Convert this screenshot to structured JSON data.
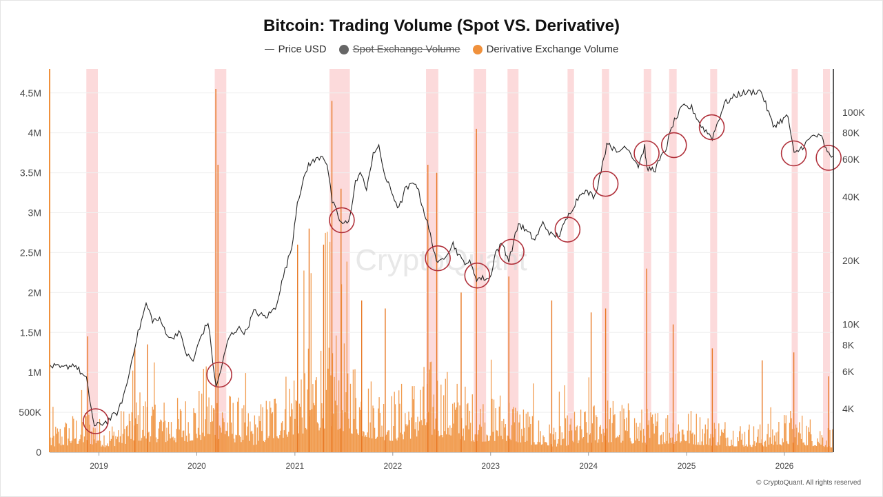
{
  "header": {
    "title": "Bitcoin: Trading Volume (Spot VS. Derivative)"
  },
  "legend": {
    "items": [
      {
        "label": "Price USD",
        "swatch": "line",
        "color": "#333333"
      },
      {
        "label": "Spot Exchange Volume",
        "swatch": "dot",
        "color": "#666666",
        "hidden": true
      },
      {
        "label": "Derivative Exchange Volume",
        "swatch": "dot",
        "color": "#f0913c"
      }
    ]
  },
  "watermark": "CryptoQuant",
  "footer": {
    "copyright": "© CryptoQuant. All rights reserved"
  },
  "chart_data": {
    "type": "bar",
    "x_range": [
      "2018-07-01",
      "2026-06-30"
    ],
    "x_ticks": [
      "2019",
      "2020",
      "2021",
      "2022",
      "2023",
      "2024",
      "2025",
      "2026"
    ],
    "y_left": {
      "range": [
        0,
        4800000
      ],
      "ticks": [
        0,
        500000,
        1000000,
        1500000,
        2000000,
        2500000,
        3000000,
        3500000,
        4000000,
        4500000
      ],
      "tick_labels": [
        "0",
        "500K",
        "1M",
        "1.5M",
        "2M",
        "2.5M",
        "3M",
        "3.5M",
        "4M",
        "4.5M"
      ]
    },
    "y_right": {
      "scale": "log",
      "range": [
        2500,
        160000
      ],
      "ticks": [
        4000,
        6000,
        8000,
        10000,
        20000,
        40000,
        60000,
        80000,
        100000
      ],
      "tick_labels": [
        "4K",
        "6K",
        "8K",
        "10K",
        "20K",
        "40K",
        "60K",
        "80K",
        "100K"
      ]
    },
    "grid": true,
    "legend_position": "top-center",
    "series": [
      {
        "name": "Price USD",
        "type": "line",
        "axis": "right",
        "color": "#222222",
        "points": [
          [
            "2018-07-01",
            6400
          ],
          [
            "2018-08-15",
            6200
          ],
          [
            "2018-10-01",
            6500
          ],
          [
            "2018-11-15",
            5500
          ],
          [
            "2018-12-15",
            3300
          ],
          [
            "2019-02-01",
            3500
          ],
          [
            "2019-03-15",
            3900
          ],
          [
            "2019-04-15",
            5200
          ],
          [
            "2019-05-15",
            8000
          ],
          [
            "2019-06-26",
            12500
          ],
          [
            "2019-07-20",
            10500
          ],
          [
            "2019-08-15",
            10500
          ],
          [
            "2019-09-25",
            8500
          ],
          [
            "2019-10-26",
            9300
          ],
          [
            "2019-11-25",
            7200
          ],
          [
            "2019-12-18",
            6700
          ],
          [
            "2020-01-15",
            8700
          ],
          [
            "2020-02-12",
            10300
          ],
          [
            "2020-03-13",
            5000
          ],
          [
            "2020-04-30",
            8700
          ],
          [
            "2020-06-01",
            9600
          ],
          [
            "2020-07-01",
            9200
          ],
          [
            "2020-08-01",
            11500
          ],
          [
            "2020-09-15",
            10800
          ],
          [
            "2020-10-20",
            12000
          ],
          [
            "2020-11-25",
            18000
          ],
          [
            "2020-12-20",
            23000
          ],
          [
            "2021-01-10",
            38000
          ],
          [
            "2021-02-21",
            57000
          ],
          [
            "2021-03-15",
            59000
          ],
          [
            "2021-04-14",
            63000
          ],
          [
            "2021-05-01",
            57000
          ],
          [
            "2021-05-20",
            38000
          ],
          [
            "2021-06-22",
            30000
          ],
          [
            "2021-07-20",
            30000
          ],
          [
            "2021-08-15",
            47000
          ],
          [
            "2021-09-07",
            52000
          ],
          [
            "2021-09-25",
            42000
          ],
          [
            "2021-10-20",
            65000
          ],
          [
            "2021-11-10",
            68000
          ],
          [
            "2021-12-05",
            49000
          ],
          [
            "2022-01-24",
            35000
          ],
          [
            "2022-02-15",
            43000
          ],
          [
            "2022-03-28",
            47000
          ],
          [
            "2022-05-10",
            30000
          ],
          [
            "2022-06-18",
            19000
          ],
          [
            "2022-08-14",
            24000
          ],
          [
            "2022-09-15",
            20000
          ],
          [
            "2022-10-15",
            19500
          ],
          [
            "2022-11-10",
            16500
          ],
          [
            "2022-12-30",
            16500
          ],
          [
            "2023-01-20",
            22000
          ],
          [
            "2023-02-15",
            24000
          ],
          [
            "2023-03-10",
            20000
          ],
          [
            "2023-04-15",
            30000
          ],
          [
            "2023-06-15",
            25000
          ],
          [
            "2023-07-15",
            30000
          ],
          [
            "2023-08-20",
            26000
          ],
          [
            "2023-09-15",
            26500
          ],
          [
            "2023-10-25",
            34000
          ],
          [
            "2023-12-10",
            43000
          ],
          [
            "2024-01-25",
            40000
          ],
          [
            "2024-02-28",
            62000
          ],
          [
            "2024-03-14",
            73000
          ],
          [
            "2024-04-15",
            64000
          ],
          [
            "2024-05-20",
            70000
          ],
          [
            "2024-07-05",
            56000
          ],
          [
            "2024-07-29",
            69000
          ],
          [
            "2024-08-05",
            54000
          ],
          [
            "2024-09-06",
            54000
          ],
          [
            "2024-10-15",
            67000
          ],
          [
            "2024-11-11",
            88000
          ],
          [
            "2024-12-17",
            106000
          ],
          [
            "2025-01-20",
            105000
          ],
          [
            "2025-02-25",
            86000
          ],
          [
            "2025-04-07",
            76000
          ],
          [
            "2025-05-22",
            110000
          ],
          [
            "2025-07-14",
            122000
          ],
          [
            "2025-08-14",
            124000
          ],
          [
            "2025-10-06",
            126000
          ],
          [
            "2025-11-20",
            86000
          ],
          [
            "2026-01-14",
            96000
          ],
          [
            "2026-02-06",
            63000
          ],
          [
            "2026-03-15",
            70000
          ],
          [
            "2026-04-20",
            78000
          ],
          [
            "2026-05-20",
            76000
          ],
          [
            "2026-06-10",
            64000
          ],
          [
            "2026-06-30",
            62000
          ]
        ]
      },
      {
        "name": "Derivative Exchange Volume",
        "type": "bar",
        "axis": "left",
        "color": "#f0913c",
        "baseline_levels": [
          [
            "2018-07-01",
            230000
          ],
          [
            "2018-11-20",
            420000
          ],
          [
            "2019-02-01",
            230000
          ],
          [
            "2019-06-01",
            560000
          ],
          [
            "2019-10-01",
            450000
          ],
          [
            "2020-03-01",
            650000
          ],
          [
            "2020-08-01",
            350000
          ],
          [
            "2021-01-01",
            850000
          ],
          [
            "2021-05-20",
            1200000
          ],
          [
            "2021-10-01",
            700000
          ],
          [
            "2022-01-01",
            550000
          ],
          [
            "2022-06-01",
            820000
          ],
          [
            "2022-11-01",
            520000
          ],
          [
            "2023-03-01",
            560000
          ],
          [
            "2023-08-01",
            250000
          ],
          [
            "2023-12-01",
            380000
          ],
          [
            "2024-03-01",
            500000
          ],
          [
            "2024-08-01",
            380000
          ],
          [
            "2024-12-01",
            420000
          ],
          [
            "2025-04-01",
            330000
          ],
          [
            "2025-10-01",
            250000
          ],
          [
            "2026-02-01",
            380000
          ],
          [
            "2026-06-30",
            230000
          ]
        ],
        "peaks": [
          [
            "2018-11-20",
            1450000
          ],
          [
            "2019-05-15",
            1300000
          ],
          [
            "2019-07-01",
            1350000
          ],
          [
            "2020-03-12",
            4550000
          ],
          [
            "2020-03-20",
            3600000
          ],
          [
            "2021-01-11",
            2600000
          ],
          [
            "2021-02-23",
            2800000
          ],
          [
            "2021-04-18",
            2600000
          ],
          [
            "2021-05-19",
            4400000
          ],
          [
            "2021-06-22",
            3300000
          ],
          [
            "2021-09-07",
            1900000
          ],
          [
            "2021-12-04",
            1800000
          ],
          [
            "2022-05-12",
            3600000
          ],
          [
            "2022-06-14",
            3500000
          ],
          [
            "2022-11-09",
            4050000
          ],
          [
            "2022-09-13",
            2000000
          ],
          [
            "2023-03-10",
            2200000
          ],
          [
            "2023-08-17",
            1900000
          ],
          [
            "2024-01-11",
            1750000
          ],
          [
            "2024-03-05",
            1800000
          ],
          [
            "2024-08-05",
            2300000
          ],
          [
            "2024-11-12",
            1600000
          ],
          [
            "2025-04-07",
            1300000
          ],
          [
            "2025-10-10",
            1150000
          ],
          [
            "2026-02-05",
            1250000
          ],
          [
            "2026-06-15",
            950000
          ]
        ]
      }
    ],
    "highlight_bands": [
      [
        "2018-11-15",
        "2018-12-28"
      ],
      [
        "2020-03-08",
        "2020-04-20"
      ],
      [
        "2021-05-10",
        "2021-07-25"
      ],
      [
        "2022-05-05",
        "2022-06-20"
      ],
      [
        "2022-10-30",
        "2022-12-15"
      ],
      [
        "2023-03-05",
        "2023-04-15"
      ],
      [
        "2023-10-15",
        "2023-11-08"
      ],
      [
        "2024-02-20",
        "2024-03-18"
      ],
      [
        "2024-07-25",
        "2024-08-22"
      ],
      [
        "2024-10-28",
        "2024-11-25"
      ],
      [
        "2025-03-30",
        "2025-04-25"
      ],
      [
        "2026-01-28",
        "2026-02-20"
      ],
      [
        "2026-05-25",
        "2026-06-20"
      ]
    ],
    "circle_markers": [
      {
        "date": "2018-12-20",
        "price": 3500
      },
      {
        "date": "2020-03-25",
        "price": 5800
      },
      {
        "date": "2021-06-25",
        "price": 31000
      },
      {
        "date": "2022-06-18",
        "price": 20500
      },
      {
        "date": "2022-11-12",
        "price": 17000
      },
      {
        "date": "2023-03-20",
        "price": 22000
      },
      {
        "date": "2023-10-15",
        "price": 28000
      },
      {
        "date": "2024-03-05",
        "price": 46000
      },
      {
        "date": "2024-08-05",
        "price": 64000
      },
      {
        "date": "2024-11-15",
        "price": 70000
      },
      {
        "date": "2025-04-05",
        "price": 85000
      },
      {
        "date": "2026-02-05",
        "price": 64000
      },
      {
        "date": "2026-06-15",
        "price": 61000
      }
    ]
  }
}
